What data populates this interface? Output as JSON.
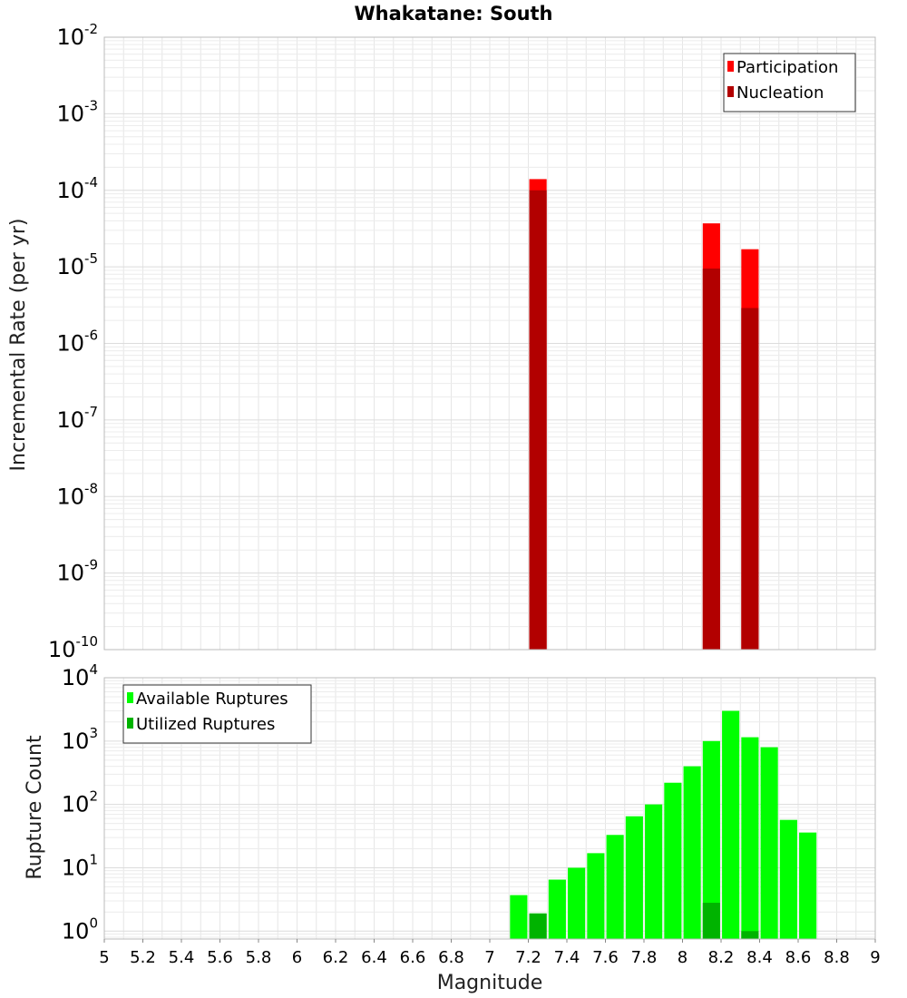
{
  "chart_data": [
    {
      "type": "bar",
      "title": "Whakatane: South",
      "xlabel": "",
      "ylabel": "Incremental Rate (per yr)",
      "yscale": "log",
      "ylim": [
        1e-10,
        0.01
      ],
      "xlim": [
        5,
        9
      ],
      "grid": true,
      "legend_position": "top-right",
      "y_tick_exponents": [
        "-2",
        "-3",
        "-4",
        "-5",
        "-6",
        "-7",
        "-8",
        "-9",
        "-10"
      ],
      "bar_width": 0.09,
      "series": [
        {
          "name": "Participation",
          "color": "#ff0000",
          "x": [
            7.25,
            8.15,
            8.35
          ],
          "values": [
            0.00014,
            3.7e-05,
            1.7e-05
          ]
        },
        {
          "name": "Nucleation",
          "color": "#b20000",
          "x": [
            7.25,
            8.15,
            8.35
          ],
          "values": [
            0.0001,
            9.5e-06,
            2.9e-06
          ]
        }
      ]
    },
    {
      "type": "bar",
      "title": "",
      "xlabel": "Magnitude",
      "ylabel": "Rupture Count",
      "yscale": "log",
      "ylim": [
        0.75,
        10000
      ],
      "xlim": [
        5,
        9
      ],
      "grid": true,
      "legend_position": "top-left",
      "y_tick_exponents": [
        "4",
        "3",
        "2",
        "1",
        "0"
      ],
      "x_tick_labels": [
        "5",
        "5.2",
        "5.4",
        "5.6",
        "5.8",
        "6",
        "6.2",
        "6.4",
        "6.6",
        "6.8",
        "7",
        "7.2",
        "7.4",
        "7.6",
        "7.8",
        "8",
        "8.2",
        "8.4",
        "8.6",
        "8.8",
        "9"
      ],
      "bar_width": 0.09,
      "series": [
        {
          "name": "Available Ruptures",
          "color": "#00ff00",
          "x": [
            7.15,
            7.25,
            7.35,
            7.45,
            7.55,
            7.65,
            7.75,
            7.85,
            7.95,
            8.05,
            8.15,
            8.25,
            8.35,
            8.45,
            8.55,
            8.65
          ],
          "values": [
            3.7,
            1.9,
            6.5,
            10,
            17,
            33,
            65,
            100,
            220,
            400,
            1000,
            3000,
            1150,
            800,
            57,
            36
          ]
        },
        {
          "name": "Utilized Ruptures",
          "color": "#00b300",
          "x": [
            7.25,
            8.15,
            8.35
          ],
          "values": [
            1.9,
            2.8,
            1
          ]
        }
      ]
    }
  ]
}
